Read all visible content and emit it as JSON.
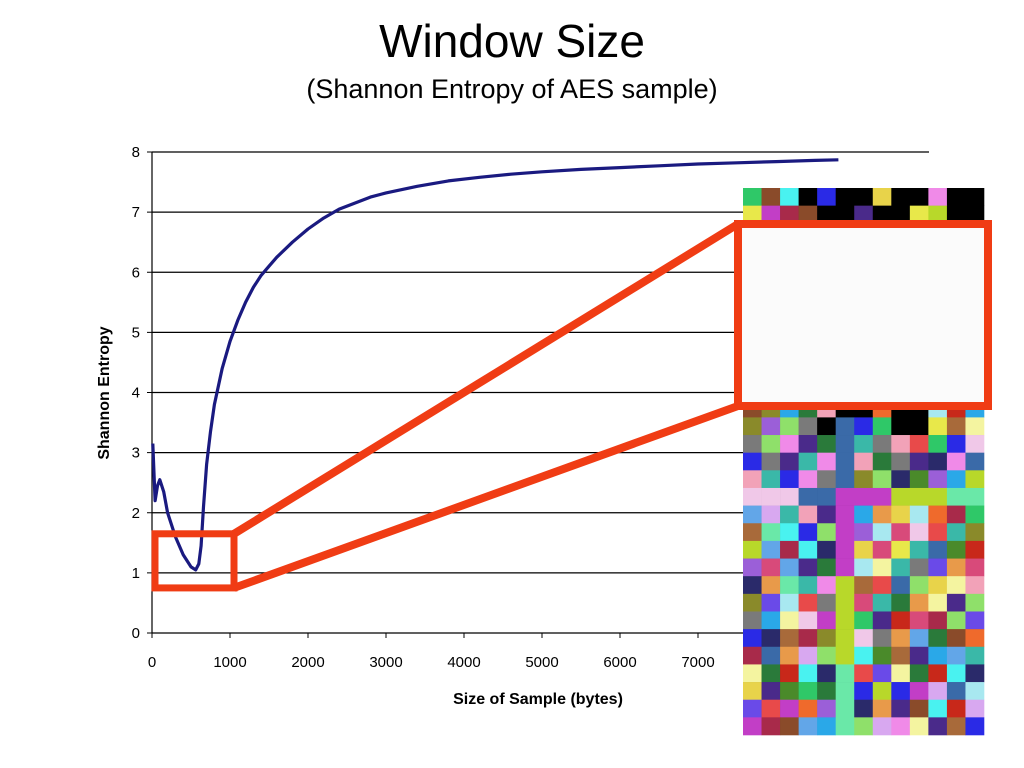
{
  "slide": {
    "title": "Window Size",
    "subtitle": "(Shannon Entropy of AES sample)"
  },
  "chart_data": {
    "type": "line",
    "xlabel": "Size of Sample (bytes)",
    "ylabel": "Shannon Entropy",
    "xlim": [
      0,
      10000
    ],
    "ylim": [
      0,
      8
    ],
    "x_ticks": [
      0,
      1000,
      2000,
      3000,
      4000,
      5000,
      6000,
      7000
    ],
    "y_ticks": [
      0,
      1,
      2,
      3,
      4,
      5,
      6,
      7,
      8
    ],
    "grid": "horizontal",
    "legend": "none",
    "series": [
      {
        "color": "#1a1a80",
        "points": [
          [
            10,
            3.15
          ],
          [
            40,
            2.2
          ],
          [
            70,
            2.45
          ],
          [
            100,
            2.55
          ],
          [
            150,
            2.35
          ],
          [
            200,
            2.0
          ],
          [
            300,
            1.6
          ],
          [
            400,
            1.3
          ],
          [
            500,
            1.1
          ],
          [
            560,
            1.05
          ],
          [
            600,
            1.15
          ],
          [
            630,
            1.45
          ],
          [
            660,
            2.1
          ],
          [
            700,
            2.8
          ],
          [
            750,
            3.35
          ],
          [
            800,
            3.8
          ],
          [
            900,
            4.4
          ],
          [
            1000,
            4.85
          ],
          [
            1100,
            5.2
          ],
          [
            1200,
            5.5
          ],
          [
            1300,
            5.75
          ],
          [
            1400,
            5.95
          ],
          [
            1500,
            6.1
          ],
          [
            1600,
            6.25
          ],
          [
            1800,
            6.5
          ],
          [
            2000,
            6.72
          ],
          [
            2200,
            6.9
          ],
          [
            2400,
            7.05
          ],
          [
            2600,
            7.15
          ],
          [
            2800,
            7.25
          ],
          [
            3000,
            7.32
          ],
          [
            3400,
            7.43
          ],
          [
            3800,
            7.52
          ],
          [
            4200,
            7.58
          ],
          [
            4600,
            7.63
          ],
          [
            5000,
            7.67
          ],
          [
            5500,
            7.71
          ],
          [
            6000,
            7.74
          ],
          [
            6500,
            7.77
          ],
          [
            7000,
            7.8
          ],
          [
            7500,
            7.82
          ],
          [
            8000,
            7.84
          ],
          [
            8500,
            7.86
          ],
          [
            8800,
            7.87
          ]
        ]
      }
    ],
    "highlight_region": {
      "x": [
        0,
        1000
      ],
      "y": [
        0.75,
        1.65
      ],
      "color": "#f03c14"
    }
  },
  "colors": {
    "highlight": "#f03c14",
    "line": "#1a1a80",
    "grid": "#000000",
    "mosaic_palette": [
      "#e8d34a",
      "#f2a2b8",
      "#17b51e",
      "#2a2ae6",
      "#c8281a",
      "#49f2f0",
      "#8a4b2a",
      "#2fc868",
      "#9b5fd8",
      "#ef6a2c",
      "#c23ec6",
      "#62a6e8",
      "#8fe06a",
      "#f4f4a0",
      "#2a7a3a",
      "#d84a7a",
      "#7a7a7a",
      "#a8e8f0",
      "#4a2a8a",
      "#e89a4a",
      "#3ab8a8",
      "#b8d82a",
      "#e84a4a",
      "#6a4ae8",
      "#f0c8e8",
      "#4a8a2a",
      "#a82a4a",
      "#2aa8e8",
      "#d8a8f0",
      "#8a8a2a",
      "#e8e84a",
      "#2a2a6a",
      "#6ae8a8",
      "#f08ae8",
      "#a86a3a",
      "#3a6aa8"
    ]
  }
}
